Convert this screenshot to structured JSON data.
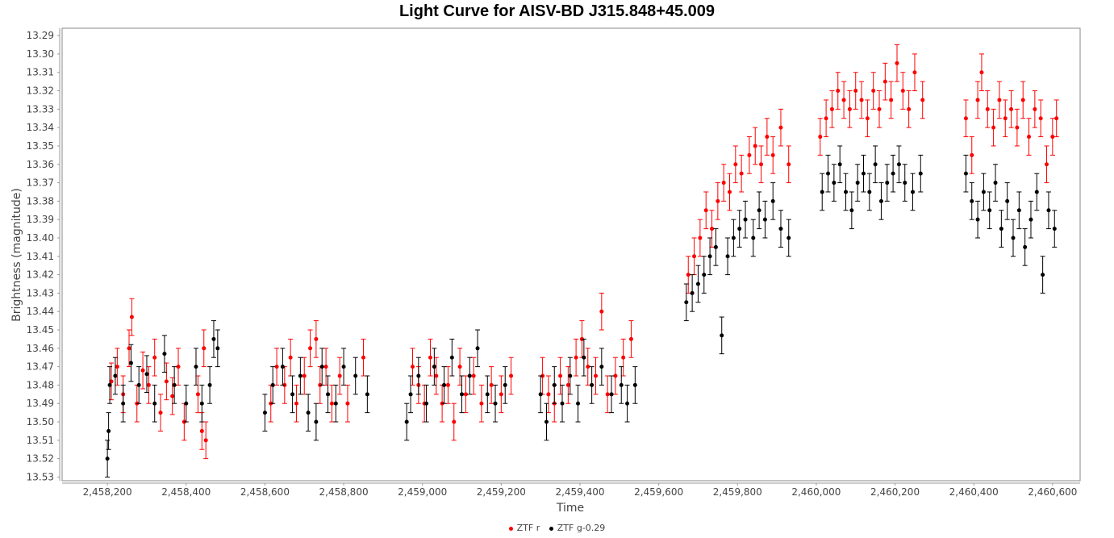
{
  "chart_data": {
    "type": "scatter",
    "title": "Light Curve for AISV-BD J315.848+45.009",
    "xlabel": "Time",
    "ylabel": "Brightness (magnitude)",
    "xlim": [
      2458085,
      2460670
    ],
    "ylim": [
      13.286,
      13.532
    ],
    "y_inverted": true,
    "grid": false,
    "legend_position": "bottom",
    "x_ticks": [
      "2,458,200",
      "2,458,400",
      "2,458,600",
      "2,458,800",
      "2,459,000",
      "2,459,200",
      "2,459,400",
      "2,459,600",
      "2,459,800",
      "2,460,000",
      "2,460,200",
      "2,460,400",
      "2,460,600"
    ],
    "x_tick_values": [
      2458200,
      2458400,
      2458600,
      2458800,
      2459000,
      2459200,
      2459400,
      2459600,
      2459800,
      2460000,
      2460200,
      2460400,
      2460600
    ],
    "y_ticks": [
      "13.29",
      "13.30",
      "13.31",
      "13.32",
      "13.33",
      "13.34",
      "13.35",
      "13.36",
      "13.37",
      "13.38",
      "13.39",
      "13.40",
      "13.41",
      "13.42",
      "13.43",
      "13.44",
      "13.45",
      "13.46",
      "13.47",
      "13.48",
      "13.49",
      "13.50",
      "13.51",
      "13.52",
      "13.53"
    ],
    "series": [
      {
        "name": "ZTF r",
        "color": "#ff0000",
        "error_bar": 0.01,
        "points": [
          [
            2458210,
            13.478
          ],
          [
            2458225,
            13.47
          ],
          [
            2458240,
            13.485
          ],
          [
            2458255,
            13.46
          ],
          [
            2458262,
            13.443
          ],
          [
            2458275,
            13.49
          ],
          [
            2458290,
            13.472
          ],
          [
            2458305,
            13.48
          ],
          [
            2458320,
            13.465
          ],
          [
            2458335,
            13.495
          ],
          [
            2458350,
            13.478
          ],
          [
            2458365,
            13.486
          ],
          [
            2458380,
            13.47
          ],
          [
            2458395,
            13.5
          ],
          [
            2458430,
            13.485
          ],
          [
            2458440,
            13.505
          ],
          [
            2458445,
            13.46
          ],
          [
            2458450,
            13.51
          ],
          [
            2458615,
            13.49
          ],
          [
            2458630,
            13.47
          ],
          [
            2458650,
            13.48
          ],
          [
            2458665,
            13.465
          ],
          [
            2458680,
            13.49
          ],
          [
            2458700,
            13.475
          ],
          [
            2458715,
            13.46
          ],
          [
            2458730,
            13.455
          ],
          [
            2458740,
            13.48
          ],
          [
            2458755,
            13.47
          ],
          [
            2458770,
            13.49
          ],
          [
            2458790,
            13.475
          ],
          [
            2458810,
            13.49
          ],
          [
            2458850,
            13.465
          ],
          [
            2458975,
            13.47
          ],
          [
            2458990,
            13.48
          ],
          [
            2459005,
            13.49
          ],
          [
            2459020,
            13.465
          ],
          [
            2459035,
            13.475
          ],
          [
            2459050,
            13.49
          ],
          [
            2459065,
            13.48
          ],
          [
            2459080,
            13.5
          ],
          [
            2459095,
            13.47
          ],
          [
            2459110,
            13.485
          ],
          [
            2459130,
            13.475
          ],
          [
            2459150,
            13.49
          ],
          [
            2459175,
            13.48
          ],
          [
            2459200,
            13.485
          ],
          [
            2459225,
            13.475
          ],
          [
            2459305,
            13.475
          ],
          [
            2459320,
            13.485
          ],
          [
            2459335,
            13.49
          ],
          [
            2459350,
            13.475
          ],
          [
            2459370,
            13.48
          ],
          [
            2459390,
            13.465
          ],
          [
            2459405,
            13.455
          ],
          [
            2459420,
            13.47
          ],
          [
            2459440,
            13.475
          ],
          [
            2459455,
            13.44
          ],
          [
            2459470,
            13.485
          ],
          [
            2459490,
            13.475
          ],
          [
            2459510,
            13.465
          ],
          [
            2459530,
            13.455
          ],
          [
            2459675,
            13.42
          ],
          [
            2459690,
            13.41
          ],
          [
            2459705,
            13.4
          ],
          [
            2459720,
            13.385
          ],
          [
            2459735,
            13.395
          ],
          [
            2459750,
            13.38
          ],
          [
            2459765,
            13.37
          ],
          [
            2459780,
            13.375
          ],
          [
            2459795,
            13.36
          ],
          [
            2459810,
            13.365
          ],
          [
            2459830,
            13.355
          ],
          [
            2459845,
            13.35
          ],
          [
            2459860,
            13.36
          ],
          [
            2459875,
            13.345
          ],
          [
            2459890,
            13.355
          ],
          [
            2459910,
            13.34
          ],
          [
            2459930,
            13.36
          ],
          [
            2460010,
            13.345
          ],
          [
            2460025,
            13.335
          ],
          [
            2460040,
            13.33
          ],
          [
            2460055,
            13.32
          ],
          [
            2460070,
            13.325
          ],
          [
            2460085,
            13.33
          ],
          [
            2460100,
            13.32
          ],
          [
            2460115,
            13.325
          ],
          [
            2460130,
            13.335
          ],
          [
            2460145,
            13.32
          ],
          [
            2460160,
            13.33
          ],
          [
            2460175,
            13.315
          ],
          [
            2460190,
            13.325
          ],
          [
            2460205,
            13.305
          ],
          [
            2460220,
            13.32
          ],
          [
            2460235,
            13.33
          ],
          [
            2460250,
            13.31
          ],
          [
            2460270,
            13.325
          ],
          [
            2460380,
            13.335
          ],
          [
            2460395,
            13.355
          ],
          [
            2460410,
            13.325
          ],
          [
            2460420,
            13.31
          ],
          [
            2460435,
            13.33
          ],
          [
            2460450,
            13.34
          ],
          [
            2460465,
            13.325
          ],
          [
            2460480,
            13.335
          ],
          [
            2460495,
            13.33
          ],
          [
            2460510,
            13.34
          ],
          [
            2460525,
            13.325
          ],
          [
            2460540,
            13.345
          ],
          [
            2460555,
            13.33
          ],
          [
            2460570,
            13.335
          ],
          [
            2460585,
            13.36
          ],
          [
            2460600,
            13.345
          ],
          [
            2460610,
            13.335
          ]
        ]
      },
      {
        "name": "ZTF g-0.29",
        "color": "#000000",
        "error_bar": 0.01,
        "points": [
          [
            2458200,
            13.52
          ],
          [
            2458203,
            13.505
          ],
          [
            2458206,
            13.48
          ],
          [
            2458220,
            13.475
          ],
          [
            2458240,
            13.49
          ],
          [
            2458260,
            13.468
          ],
          [
            2458280,
            13.48
          ],
          [
            2458300,
            13.474
          ],
          [
            2458320,
            13.49
          ],
          [
            2458345,
            13.463
          ],
          [
            2458370,
            13.48
          ],
          [
            2458400,
            13.49
          ],
          [
            2458425,
            13.47
          ],
          [
            2458440,
            13.49
          ],
          [
            2458460,
            13.48
          ],
          [
            2458470,
            13.455
          ],
          [
            2458480,
            13.46
          ],
          [
            2458600,
            13.495
          ],
          [
            2458620,
            13.48
          ],
          [
            2458645,
            13.47
          ],
          [
            2458670,
            13.485
          ],
          [
            2458690,
            13.475
          ],
          [
            2458710,
            13.495
          ],
          [
            2458730,
            13.5
          ],
          [
            2458745,
            13.47
          ],
          [
            2458760,
            13.485
          ],
          [
            2458780,
            13.49
          ],
          [
            2458800,
            13.47
          ],
          [
            2458830,
            13.475
          ],
          [
            2458860,
            13.485
          ],
          [
            2458960,
            13.5
          ],
          [
            2458970,
            13.485
          ],
          [
            2458990,
            13.475
          ],
          [
            2459010,
            13.49
          ],
          [
            2459030,
            13.47
          ],
          [
            2459055,
            13.48
          ],
          [
            2459075,
            13.465
          ],
          [
            2459100,
            13.485
          ],
          [
            2459120,
            13.475
          ],
          [
            2459140,
            13.46
          ],
          [
            2459165,
            13.485
          ],
          [
            2459185,
            13.49
          ],
          [
            2459210,
            13.48
          ],
          [
            2459300,
            13.485
          ],
          [
            2459315,
            13.5
          ],
          [
            2459335,
            13.48
          ],
          [
            2459355,
            13.49
          ],
          [
            2459375,
            13.475
          ],
          [
            2459395,
            13.49
          ],
          [
            2459410,
            13.465
          ],
          [
            2459430,
            13.48
          ],
          [
            2459455,
            13.47
          ],
          [
            2459480,
            13.485
          ],
          [
            2459505,
            13.48
          ],
          [
            2459520,
            13.49
          ],
          [
            2459540,
            13.48
          ],
          [
            2459670,
            13.435
          ],
          [
            2459685,
            13.43
          ],
          [
            2459700,
            13.425
          ],
          [
            2459715,
            13.42
          ],
          [
            2459730,
            13.41
          ],
          [
            2459745,
            13.405
          ],
          [
            2459760,
            13.453
          ],
          [
            2459775,
            13.41
          ],
          [
            2459790,
            13.4
          ],
          [
            2459805,
            13.395
          ],
          [
            2459820,
            13.39
          ],
          [
            2459840,
            13.4
          ],
          [
            2459855,
            13.385
          ],
          [
            2459870,
            13.39
          ],
          [
            2459890,
            13.38
          ],
          [
            2459910,
            13.395
          ],
          [
            2459930,
            13.4
          ],
          [
            2460015,
            13.375
          ],
          [
            2460030,
            13.365
          ],
          [
            2460045,
            13.37
          ],
          [
            2460060,
            13.36
          ],
          [
            2460075,
            13.375
          ],
          [
            2460090,
            13.385
          ],
          [
            2460105,
            13.37
          ],
          [
            2460120,
            13.365
          ],
          [
            2460135,
            13.375
          ],
          [
            2460150,
            13.36
          ],
          [
            2460165,
            13.38
          ],
          [
            2460180,
            13.37
          ],
          [
            2460195,
            13.365
          ],
          [
            2460210,
            13.36
          ],
          [
            2460225,
            13.37
          ],
          [
            2460245,
            13.375
          ],
          [
            2460265,
            13.365
          ],
          [
            2460380,
            13.365
          ],
          [
            2460395,
            13.38
          ],
          [
            2460410,
            13.39
          ],
          [
            2460425,
            13.375
          ],
          [
            2460440,
            13.385
          ],
          [
            2460455,
            13.37
          ],
          [
            2460470,
            13.395
          ],
          [
            2460485,
            13.38
          ],
          [
            2460500,
            13.4
          ],
          [
            2460515,
            13.385
          ],
          [
            2460530,
            13.405
          ],
          [
            2460545,
            13.39
          ],
          [
            2460560,
            13.375
          ],
          [
            2460575,
            13.42
          ],
          [
            2460590,
            13.385
          ],
          [
            2460605,
            13.395
          ]
        ]
      }
    ]
  }
}
